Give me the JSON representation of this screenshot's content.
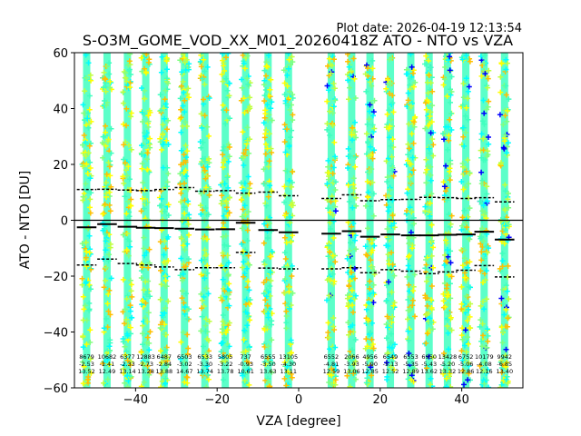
{
  "plot_date": "Plot date: 2026-04-19 12:13:54",
  "chart_data": {
    "type": "scatter",
    "title": "S-O3M_GOME_VOD_XX_M01_20260418Z ATO - NTO vs VZA",
    "xlabel": "VZA [degree]",
    "ylabel": "ATO - NTO [DU]",
    "xlim": [
      -55,
      55
    ],
    "ylim": [
      -60,
      60
    ],
    "xticks": [
      -40,
      -20,
      0,
      20,
      40
    ],
    "yticks": [
      -60,
      -40,
      -20,
      0,
      20,
      40,
      60
    ],
    "zero_line": 0,
    "series_colors": [
      "#00ffff",
      "#40ffbf",
      "#80ff80",
      "#bfff40",
      "#ffff00",
      "#ffbf00",
      "#0000ff"
    ],
    "bins": [
      {
        "vza": -52,
        "n": "8679",
        "mean": "-2.53",
        "std": "13.52",
        "line_mean": -2.5,
        "upper": 11.0,
        "lower": -16.0
      },
      {
        "vza": -47,
        "n": "10682",
        "mean": "-1.41",
        "std": "12.49",
        "line_mean": -1.4,
        "upper": 11.1,
        "lower": -13.9
      },
      {
        "vza": -42,
        "n": "6377",
        "mean": "-2.33",
        "std": "13.14",
        "line_mean": -2.3,
        "upper": 10.8,
        "lower": -15.5
      },
      {
        "vza": -37.5,
        "n": "12883",
        "mean": "-2.73",
        "std": "13.28",
        "line_mean": -2.7,
        "upper": 10.6,
        "lower": -16.0
      },
      {
        "vza": -33,
        "n": "6487",
        "mean": "-2.84",
        "std": "13.88",
        "line_mean": -2.8,
        "upper": 11.0,
        "lower": -16.7
      },
      {
        "vza": -28,
        "n": "6503",
        "mean": "-3.02",
        "std": "14.67",
        "line_mean": -3.0,
        "upper": 11.7,
        "lower": -17.7
      },
      {
        "vza": -23,
        "n": "6533",
        "mean": "-3.30",
        "std": "13.74",
        "line_mean": -3.3,
        "upper": 10.4,
        "lower": -17.0
      },
      {
        "vza": -18,
        "n": "5805",
        "mean": "-3.22",
        "std": "13.78",
        "line_mean": -3.2,
        "upper": 10.6,
        "lower": -17.0
      },
      {
        "vza": -13,
        "n": "737",
        "mean": "-0.93",
        "std": "10.61",
        "line_mean": -0.9,
        "upper": 9.7,
        "lower": -11.5
      },
      {
        "vza": -7.5,
        "n": "6555",
        "mean": "-3.50",
        "std": "13.63",
        "line_mean": -3.5,
        "upper": 10.1,
        "lower": -17.1
      },
      {
        "vza": -2.5,
        "n": "13105",
        "mean": "-4.30",
        "std": "13.11",
        "line_mean": -4.3,
        "upper": 8.8,
        "lower": -17.4
      },
      {
        "vza": 8,
        "n": "6552",
        "mean": "-4.81",
        "std": "12.59",
        "line_mean": -4.8,
        "upper": 7.8,
        "lower": -17.4
      },
      {
        "vza": 13,
        "n": "2066",
        "mean": "-3.93",
        "std": "13.06",
        "line_mean": -3.9,
        "upper": 9.1,
        "lower": -17.0
      },
      {
        "vza": 17.5,
        "n": "4956",
        "mean": "-5.90",
        "std": "12.85",
        "line_mean": -5.9,
        "upper": 7.0,
        "lower": -18.8
      },
      {
        "vza": 22.5,
        "n": "6549",
        "mean": "-5.13",
        "std": "12.52",
        "line_mean": -5.1,
        "upper": 7.4,
        "lower": -17.7
      },
      {
        "vza": 27.5,
        "n": "6553",
        "mean": "-5.35",
        "std": "12.89",
        "line_mean": -5.4,
        "upper": 7.5,
        "lower": -18.2
      },
      {
        "vza": 32,
        "n": "6950",
        "mean": "-5.43",
        "std": "13.62",
        "line_mean": -5.4,
        "upper": 8.2,
        "lower": -19.1
      },
      {
        "vza": 36.5,
        "n": "13428",
        "mean": "-5.20",
        "std": "13.32",
        "line_mean": -5.2,
        "upper": 8.1,
        "lower": -18.5
      },
      {
        "vza": 41,
        "n": "6752",
        "mean": "-5.06",
        "std": "12.86",
        "line_mean": -5.1,
        "upper": 7.8,
        "lower": -17.9
      },
      {
        "vza": 45.5,
        "n": "10179",
        "mean": "-4.08",
        "std": "12.16",
        "line_mean": -4.1,
        "upper": 8.1,
        "lower": -16.2
      },
      {
        "vza": 50.5,
        "n": "9942",
        "mean": "-6.85",
        "std": "13.40",
        "line_mean": -6.9,
        "upper": 6.6,
        "lower": -20.3
      }
    ]
  }
}
